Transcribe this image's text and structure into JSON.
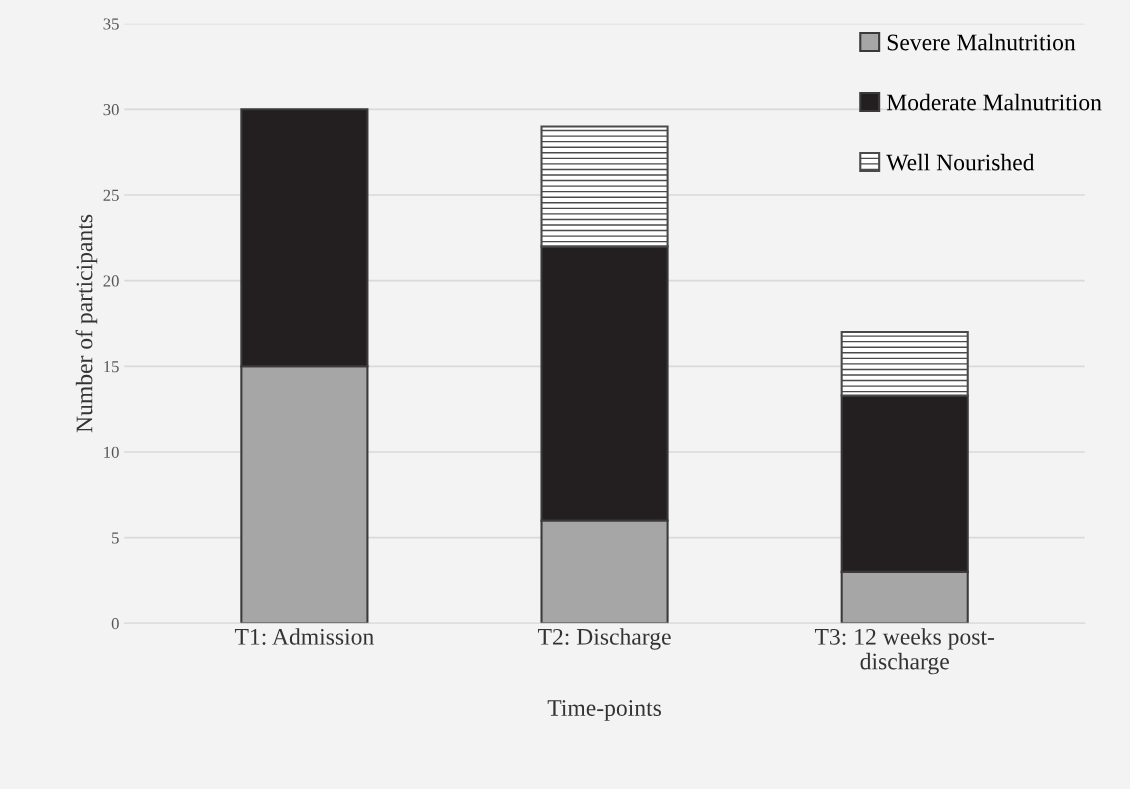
{
  "chart_data": {
    "type": "bar",
    "stacked": true,
    "xlabel": "Time-points",
    "ylabel": "Number of participants",
    "categories": [
      "T1: Admission",
      "T2: Discharge",
      "T3: 12 weeks post-\ndischarge"
    ],
    "series": [
      {
        "name": "Severe Malnutrition",
        "color": "#a6a6a6",
        "values": [
          15,
          6,
          3
        ]
      },
      {
        "name": "Moderate Malnutrition",
        "color": "#231f20",
        "values": [
          15,
          16,
          10.3
        ]
      },
      {
        "name": "Well Nourished",
        "color": "#4a4a4a",
        "values": [
          null,
          7,
          3.7
        ]
      }
    ],
    "ylim": [
      0,
      35
    ],
    "yticks": [
      0,
      5,
      10,
      15,
      20,
      25,
      30,
      35
    ],
    "grid": "y",
    "legend": "top right"
  }
}
